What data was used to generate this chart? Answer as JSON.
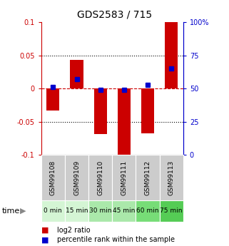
{
  "title": "GDS2583 / 715",
  "samples": [
    "GSM99108",
    "GSM99109",
    "GSM99110",
    "GSM99111",
    "GSM99112",
    "GSM99113"
  ],
  "time_labels": [
    "0 min",
    "15 min",
    "30 min",
    "45 min",
    "60 min",
    "75 min"
  ],
  "log2_ratio": [
    -0.033,
    0.043,
    -0.068,
    -0.1,
    -0.067,
    0.1
  ],
  "percentile_rank": [
    51,
    57,
    49,
    49,
    53,
    65
  ],
  "ylim_left": [
    -0.1,
    0.1
  ],
  "ylim_right": [
    0,
    100
  ],
  "bar_color": "#cc0000",
  "dot_color": "#0000cc",
  "zero_line_color": "#cc0000",
  "bg_color": "#ffffff",
  "plot_bg": "#ffffff",
  "time_colors": [
    "#d4f5d4",
    "#d4f5d4",
    "#aae8aa",
    "#aae8aa",
    "#77dd77",
    "#55cc55"
  ],
  "sample_bg": "#cccccc",
  "left_tick_color": "#cc0000",
  "right_tick_color": "#0000cc",
  "bar_width": 0.55,
  "title_fontsize": 10,
  "tick_fontsize": 7,
  "sample_fontsize": 6.5,
  "time_fontsize": 6.5,
  "legend_fontsize": 7
}
